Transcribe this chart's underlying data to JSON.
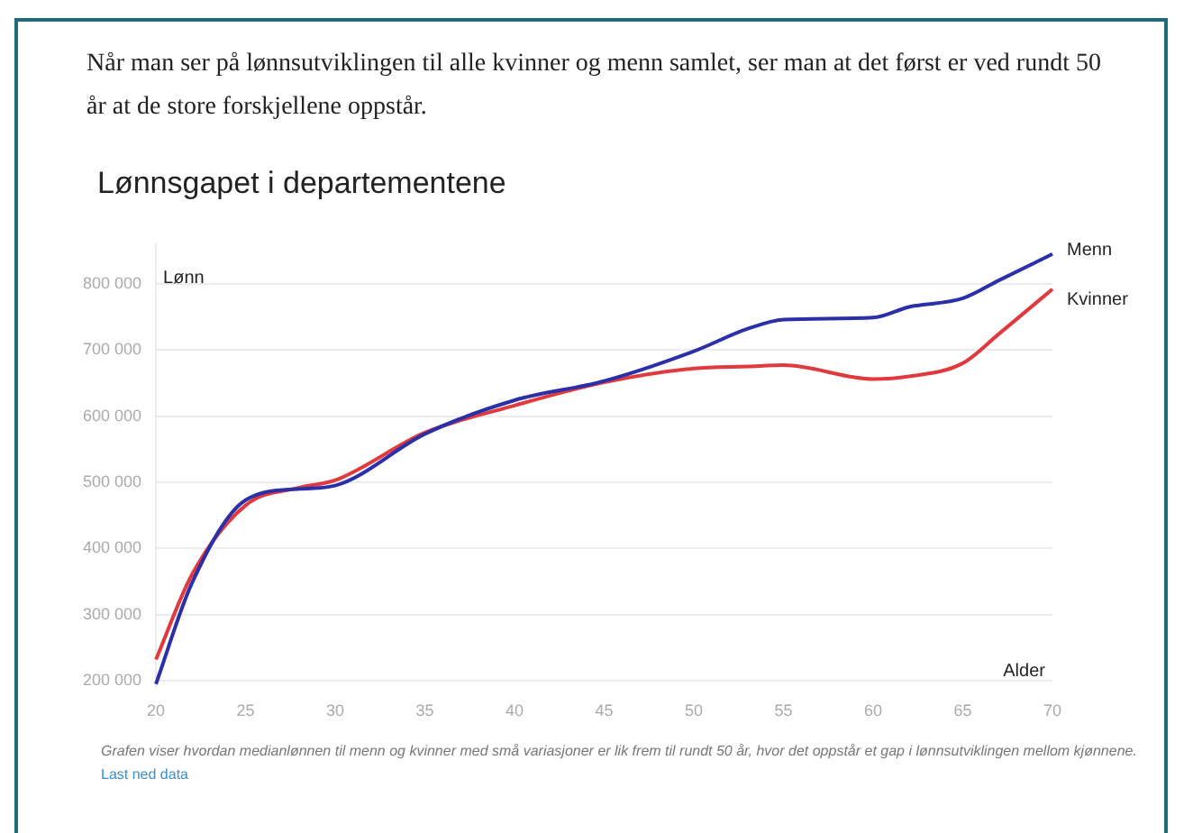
{
  "chart_data": {
    "type": "line",
    "title": "Lønnsgapet i departementene",
    "subtitle": "Når man ser på lønnsutviklingen til alle kvinner og menn samlet, ser man at det først er ved rundt 50 år at de store forskjellene oppstår.",
    "xlabel": "Alder",
    "ylabel": "Lønn",
    "x": [
      20,
      22,
      25,
      28,
      30,
      35,
      40,
      45,
      50,
      53,
      55,
      60,
      62,
      65,
      67,
      70
    ],
    "series": [
      {
        "name": "Menn",
        "color": "#2b2fa8",
        "values": [
          195000,
          347000,
          473000,
          490000,
          495000,
          573000,
          624000,
          653000,
          698000,
          732000,
          746000,
          749000,
          765000,
          778000,
          805000,
          845000
        ]
      },
      {
        "name": "Kvinner",
        "color": "#e0393e",
        "values": [
          232000,
          360000,
          465000,
          492000,
          503000,
          575000,
          616000,
          651000,
          672000,
          675000,
          677000,
          656000,
          660000,
          680000,
          724000,
          792000
        ]
      }
    ],
    "xlim": [
      20,
      70
    ],
    "xticks": [
      20,
      25,
      30,
      35,
      40,
      45,
      50,
      55,
      60,
      65,
      70
    ],
    "ylim": [
      190000,
      860000
    ],
    "yticks": [
      {
        "value": 200000,
        "label": "200 000"
      },
      {
        "value": 300000,
        "label": "300 000"
      },
      {
        "value": 400000,
        "label": "400 000"
      },
      {
        "value": 500000,
        "label": "500 000"
      },
      {
        "value": 600000,
        "label": "600 000"
      },
      {
        "value": 700000,
        "label": "700 000"
      },
      {
        "value": 800000,
        "label": "800 000"
      }
    ],
    "grid": "y",
    "legend": false,
    "marker": "none",
    "line_style": "solid",
    "annotations": [
      "Grafen viser hvordan medianlønnen til menn og kvinner med små variasjoner er lik frem til rundt 50 år, hvor det oppstår et gap i lønnsutviklingen mellom kjønnene.",
      "Last ned data"
    ]
  }
}
